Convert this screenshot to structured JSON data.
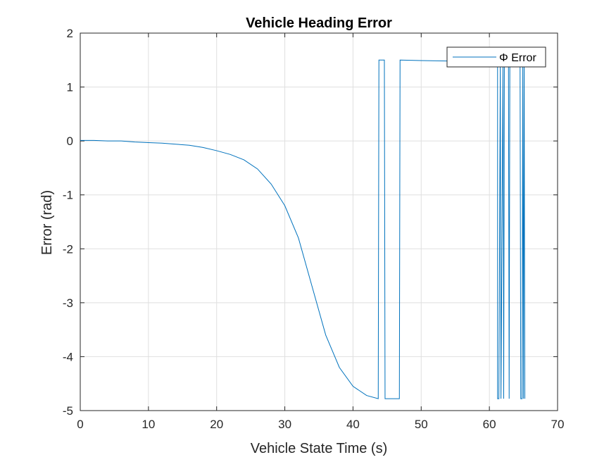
{
  "chart_data": {
    "type": "line",
    "title": "Vehicle Heading Error",
    "xlabel": "Vehicle State Time (s)",
    "ylabel": "Error (rad)",
    "xlim": [
      0,
      70
    ],
    "ylim": [
      -5,
      2
    ],
    "xticks": [
      0,
      10,
      20,
      30,
      40,
      50,
      60,
      70
    ],
    "yticks": [
      -5,
      -4,
      -3,
      -2,
      -1,
      0,
      1,
      2
    ],
    "xtick_labels": [
      "0",
      "10",
      "20",
      "30",
      "40",
      "50",
      "60",
      "70"
    ],
    "ytick_labels": [
      "-5",
      "-4",
      "-3",
      "-2",
      "-1",
      "0",
      "1",
      "2"
    ],
    "grid": true,
    "legend": "top-right",
    "series": [
      {
        "name": "Φ Error",
        "color": "#0072BD",
        "x": [
          0,
          2,
          4,
          6,
          8,
          10,
          12,
          14,
          16,
          18,
          20,
          22,
          24,
          26,
          28,
          30,
          32,
          34,
          36,
          38,
          40,
          42,
          43.7,
          43.8,
          44.6,
          44.7,
          46.8,
          46.9,
          50,
          55,
          60,
          61.2,
          61.2,
          61.4,
          61.6,
          61.7,
          62.0,
          62.1,
          62.2,
          62.8,
          62.9,
          63.0,
          64.5,
          64.6,
          64.8,
          64.9,
          65.0,
          65.1,
          65.2
        ],
        "y": [
          0.01,
          0.01,
          0.0,
          0.0,
          -0.02,
          -0.03,
          -0.04,
          -0.06,
          -0.08,
          -0.12,
          -0.18,
          -0.25,
          -0.35,
          -0.52,
          -0.8,
          -1.2,
          -1.8,
          -2.7,
          -3.6,
          -4.2,
          -4.55,
          -4.72,
          -4.78,
          1.5,
          1.5,
          -4.78,
          -4.78,
          1.5,
          1.49,
          1.48,
          1.47,
          1.47,
          -4.78,
          -4.78,
          1.47,
          -4.78,
          1.47,
          -4.78,
          1.47,
          1.47,
          -4.78,
          1.47,
          1.47,
          -4.78,
          -4.78,
          1.47,
          -4.78,
          1.47,
          -4.78
        ]
      }
    ]
  }
}
